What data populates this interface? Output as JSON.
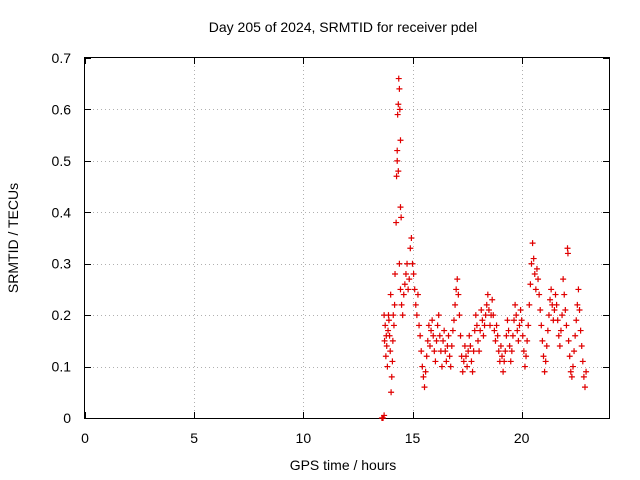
{
  "chart_data": {
    "type": "scatter",
    "title": "Day 205 of 2024, SRMTID for receiver pdel",
    "xlabel": "GPS time / hours",
    "ylabel": "SRMTID / TECUs",
    "xlim": [
      0,
      24
    ],
    "ylim": [
      0,
      0.7
    ],
    "xticks": [
      0,
      5,
      10,
      15,
      20
    ],
    "yticks": [
      0,
      0.1,
      0.2,
      0.3,
      0.4,
      0.5,
      0.6,
      0.7
    ],
    "xtick_labels": [
      "0",
      "5",
      "10",
      "15",
      "20"
    ],
    "ytick_labels": [
      "0",
      "0.1",
      "0.2",
      "0.3",
      "0.4",
      "0.5",
      "0.6",
      "0.7"
    ],
    "grid": true,
    "marker": "+",
    "marker_color": "#e00000",
    "series": [
      {
        "name": "SRMTID",
        "points": [
          [
            13.6,
            0.0
          ],
          [
            13.65,
            0.0
          ],
          [
            13.7,
            0.005
          ],
          [
            13.7,
            0.2
          ],
          [
            13.72,
            0.15
          ],
          [
            13.75,
            0.18
          ],
          [
            13.78,
            0.12
          ],
          [
            13.8,
            0.16
          ],
          [
            13.82,
            0.14
          ],
          [
            13.85,
            0.1
          ],
          [
            13.88,
            0.17
          ],
          [
            13.9,
            0.2
          ],
          [
            13.92,
            0.19
          ],
          [
            13.95,
            0.16
          ],
          [
            13.98,
            0.13
          ],
          [
            14.0,
            0.24
          ],
          [
            14.02,
            0.05
          ],
          [
            14.05,
            0.08
          ],
          [
            14.08,
            0.11
          ],
          [
            14.1,
            0.15
          ],
          [
            14.12,
            0.2
          ],
          [
            14.15,
            0.18
          ],
          [
            14.18,
            0.22
          ],
          [
            14.2,
            0.28
          ],
          [
            14.25,
            0.38
          ],
          [
            14.27,
            0.47
          ],
          [
            14.3,
            0.52
          ],
          [
            14.32,
            0.59
          ],
          [
            14.35,
            0.61
          ],
          [
            14.37,
            0.66
          ],
          [
            14.4,
            0.64
          ],
          [
            14.42,
            0.6
          ],
          [
            14.45,
            0.54
          ],
          [
            14.45,
            0.41
          ],
          [
            14.48,
            0.39
          ],
          [
            14.3,
            0.5
          ],
          [
            14.35,
            0.48
          ],
          [
            14.4,
            0.3
          ],
          [
            14.45,
            0.25
          ],
          [
            14.5,
            0.22
          ],
          [
            14.55,
            0.2
          ],
          [
            14.6,
            0.24
          ],
          [
            14.65,
            0.26
          ],
          [
            14.7,
            0.28
          ],
          [
            14.75,
            0.3
          ],
          [
            14.8,
            0.25
          ],
          [
            14.85,
            0.27
          ],
          [
            14.9,
            0.33
          ],
          [
            14.95,
            0.35
          ],
          [
            15.0,
            0.3
          ],
          [
            15.05,
            0.28
          ],
          [
            15.1,
            0.25
          ],
          [
            15.15,
            0.22
          ],
          [
            15.2,
            0.2
          ],
          [
            15.25,
            0.24
          ],
          [
            15.3,
            0.18
          ],
          [
            15.35,
            0.16
          ],
          [
            15.4,
            0.13
          ],
          [
            15.45,
            0.1
          ],
          [
            15.5,
            0.08
          ],
          [
            15.55,
            0.06
          ],
          [
            15.6,
            0.09
          ],
          [
            15.65,
            0.12
          ],
          [
            15.7,
            0.15
          ],
          [
            15.75,
            0.18
          ],
          [
            15.8,
            0.14
          ],
          [
            15.85,
            0.17
          ],
          [
            15.9,
            0.19
          ],
          [
            15.95,
            0.16
          ],
          [
            16.0,
            0.13
          ],
          [
            16.05,
            0.11
          ],
          [
            16.1,
            0.15
          ],
          [
            16.15,
            0.18
          ],
          [
            16.2,
            0.2
          ],
          [
            16.25,
            0.16
          ],
          [
            16.3,
            0.13
          ],
          [
            16.35,
            0.1
          ],
          [
            16.4,
            0.15
          ],
          [
            16.45,
            0.17
          ],
          [
            16.5,
            0.13
          ],
          [
            16.55,
            0.11
          ],
          [
            16.6,
            0.14
          ],
          [
            16.65,
            0.16
          ],
          [
            16.7,
            0.12
          ],
          [
            16.75,
            0.1
          ],
          [
            16.8,
            0.14
          ],
          [
            16.85,
            0.17
          ],
          [
            16.9,
            0.19
          ],
          [
            16.95,
            0.22
          ],
          [
            17.0,
            0.25
          ],
          [
            17.05,
            0.27
          ],
          [
            17.1,
            0.24
          ],
          [
            17.15,
            0.2
          ],
          [
            17.2,
            0.16
          ],
          [
            17.25,
            0.12
          ],
          [
            17.3,
            0.09
          ],
          [
            17.35,
            0.11
          ],
          [
            17.4,
            0.14
          ],
          [
            17.45,
            0.12
          ],
          [
            17.5,
            0.1
          ],
          [
            17.55,
            0.13
          ],
          [
            17.6,
            0.16
          ],
          [
            17.65,
            0.14
          ],
          [
            17.7,
            0.11
          ],
          [
            17.75,
            0.09
          ],
          [
            17.8,
            0.13
          ],
          [
            17.85,
            0.17
          ],
          [
            17.9,
            0.2
          ],
          [
            17.95,
            0.18
          ],
          [
            18.0,
            0.15
          ],
          [
            18.05,
            0.13
          ],
          [
            18.1,
            0.17
          ],
          [
            18.15,
            0.21
          ],
          [
            18.2,
            0.19
          ],
          [
            18.25,
            0.16
          ],
          [
            18.3,
            0.18
          ],
          [
            18.35,
            0.2
          ],
          [
            18.4,
            0.22
          ],
          [
            18.45,
            0.24
          ],
          [
            18.5,
            0.21
          ],
          [
            18.55,
            0.18
          ],
          [
            18.6,
            0.2
          ],
          [
            18.65,
            0.23
          ],
          [
            18.7,
            0.2
          ],
          [
            18.75,
            0.17
          ],
          [
            18.8,
            0.15
          ],
          [
            18.85,
            0.18
          ],
          [
            18.9,
            0.16
          ],
          [
            18.95,
            0.13
          ],
          [
            19.0,
            0.11
          ],
          [
            19.05,
            0.14
          ],
          [
            19.1,
            0.12
          ],
          [
            19.15,
            0.09
          ],
          [
            19.2,
            0.11
          ],
          [
            19.25,
            0.13
          ],
          [
            19.3,
            0.16
          ],
          [
            19.35,
            0.19
          ],
          [
            19.4,
            0.17
          ],
          [
            19.45,
            0.14
          ],
          [
            19.5,
            0.11
          ],
          [
            19.55,
            0.13
          ],
          [
            19.6,
            0.16
          ],
          [
            19.65,
            0.19
          ],
          [
            19.7,
            0.22
          ],
          [
            19.75,
            0.2
          ],
          [
            19.8,
            0.17
          ],
          [
            19.85,
            0.15
          ],
          [
            19.9,
            0.18
          ],
          [
            19.95,
            0.21
          ],
          [
            20.0,
            0.19
          ],
          [
            20.05,
            0.16
          ],
          [
            20.1,
            0.13
          ],
          [
            20.15,
            0.1
          ],
          [
            20.2,
            0.12
          ],
          [
            20.25,
            0.15
          ],
          [
            20.3,
            0.18
          ],
          [
            20.35,
            0.22
          ],
          [
            20.4,
            0.26
          ],
          [
            20.45,
            0.3
          ],
          [
            20.5,
            0.34
          ],
          [
            20.55,
            0.31
          ],
          [
            20.6,
            0.28
          ],
          [
            20.65,
            0.25
          ],
          [
            20.7,
            0.29
          ],
          [
            20.75,
            0.27
          ],
          [
            20.8,
            0.24
          ],
          [
            20.85,
            0.21
          ],
          [
            20.9,
            0.18
          ],
          [
            20.95,
            0.15
          ],
          [
            21.0,
            0.12
          ],
          [
            21.05,
            0.09
          ],
          [
            21.1,
            0.11
          ],
          [
            21.15,
            0.14
          ],
          [
            21.2,
            0.17
          ],
          [
            21.25,
            0.2
          ],
          [
            21.3,
            0.23
          ],
          [
            21.35,
            0.25
          ],
          [
            21.4,
            0.22
          ],
          [
            21.45,
            0.19
          ],
          [
            21.5,
            0.21
          ],
          [
            21.55,
            0.24
          ],
          [
            21.6,
            0.22
          ],
          [
            21.65,
            0.19
          ],
          [
            21.7,
            0.16
          ],
          [
            21.75,
            0.14
          ],
          [
            21.8,
            0.17
          ],
          [
            21.85,
            0.2
          ],
          [
            21.9,
            0.27
          ],
          [
            21.95,
            0.24
          ],
          [
            22.0,
            0.21
          ],
          [
            22.05,
            0.18
          ],
          [
            22.1,
            0.33
          ],
          [
            22.12,
            0.32
          ],
          [
            22.15,
            0.15
          ],
          [
            22.2,
            0.12
          ],
          [
            22.25,
            0.09
          ],
          [
            22.3,
            0.08
          ],
          [
            22.35,
            0.1
          ],
          [
            22.4,
            0.13
          ],
          [
            22.45,
            0.16
          ],
          [
            22.5,
            0.19
          ],
          [
            22.55,
            0.22
          ],
          [
            22.6,
            0.25
          ],
          [
            22.65,
            0.21
          ],
          [
            22.7,
            0.17
          ],
          [
            22.75,
            0.14
          ],
          [
            22.8,
            0.11
          ],
          [
            22.85,
            0.08
          ],
          [
            22.9,
            0.06
          ],
          [
            22.95,
            0.09
          ]
        ]
      }
    ]
  }
}
